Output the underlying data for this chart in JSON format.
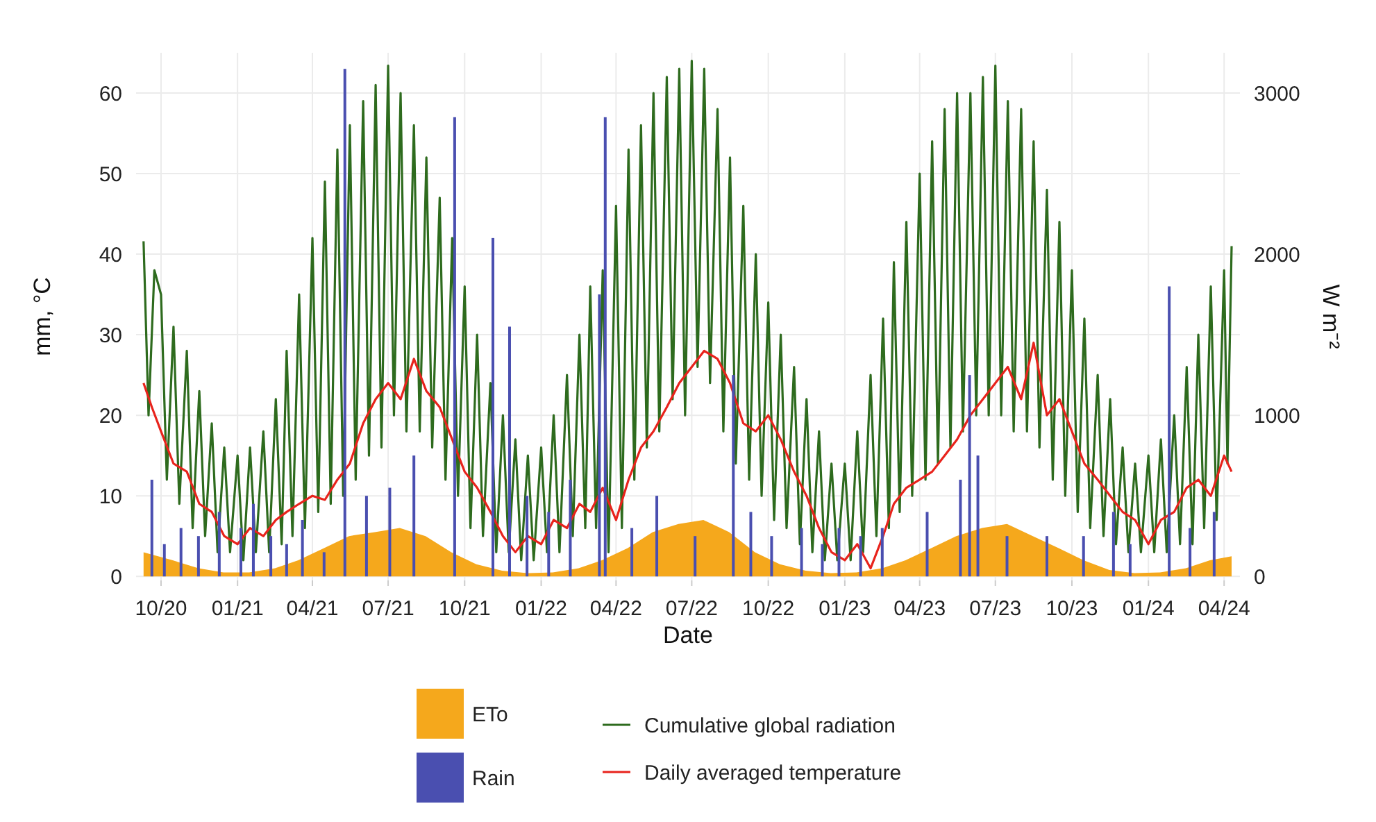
{
  "chart_data": {
    "type": "line",
    "xlabel": "Date",
    "ylabel": "mm, °C",
    "y2label": "W m⁻²",
    "grid": true,
    "legend": "bottom",
    "xlim": [
      "2020-09-01",
      "2024-04-20"
    ],
    "ylim": [
      -0.5,
      65
    ],
    "yticks": [
      0,
      10,
      20,
      30,
      40,
      50,
      60
    ],
    "y2lim": [
      -25,
      3250
    ],
    "y2ticks": [
      0,
      1000,
      2000,
      3000
    ],
    "xticks": [
      {
        "value": "2020-10-01",
        "label": "10/20"
      },
      {
        "value": "2021-01-01",
        "label": "01/21"
      },
      {
        "value": "2021-04-01",
        "label": "04/21"
      },
      {
        "value": "2021-07-01",
        "label": "07/21"
      },
      {
        "value": "2021-10-01",
        "label": "10/21"
      },
      {
        "value": "2022-01-01",
        "label": "01/22"
      },
      {
        "value": "2022-04-01",
        "label": "04/22"
      },
      {
        "value": "2022-07-01",
        "label": "07/22"
      },
      {
        "value": "2022-10-01",
        "label": "10/22"
      },
      {
        "value": "2023-01-01",
        "label": "01/23"
      },
      {
        "value": "2023-04-01",
        "label": "04/23"
      },
      {
        "value": "2023-07-01",
        "label": "07/23"
      },
      {
        "value": "2023-10-01",
        "label": "10/23"
      },
      {
        "value": "2024-01-01",
        "label": "01/24"
      },
      {
        "value": "2024-04-01",
        "label": "04/24"
      }
    ],
    "series": [
      {
        "name": "ETo",
        "type": "area",
        "color": "#f5a81c",
        "x": [
          "2020-09-10",
          "2020-10-15",
          "2020-11-15",
          "2020-12-15",
          "2021-01-15",
          "2021-02-15",
          "2021-03-15",
          "2021-04-15",
          "2021-05-15",
          "2021-06-15",
          "2021-07-15",
          "2021-08-15",
          "2021-09-15",
          "2021-10-15",
          "2021-11-15",
          "2021-12-15",
          "2022-01-15",
          "2022-02-15",
          "2022-03-15",
          "2022-04-15",
          "2022-05-15",
          "2022-06-15",
          "2022-07-15",
          "2022-08-15",
          "2022-09-15",
          "2022-10-15",
          "2022-11-15",
          "2022-12-15",
          "2023-01-15",
          "2023-02-15",
          "2023-03-15",
          "2023-04-15",
          "2023-05-15",
          "2023-06-15",
          "2023-07-15",
          "2023-08-15",
          "2023-09-15",
          "2023-10-15",
          "2023-11-15",
          "2023-12-15",
          "2024-01-15",
          "2024-02-15",
          "2024-03-15",
          "2024-04-10"
        ],
        "values": [
          3,
          2,
          1,
          0.5,
          0.5,
          1,
          2,
          3.5,
          5,
          5.5,
          6,
          5,
          3,
          1.5,
          0.7,
          0.4,
          0.5,
          1,
          2,
          3.5,
          5.5,
          6.5,
          7,
          5.5,
          3,
          1.5,
          0.7,
          0.4,
          0.5,
          1,
          2,
          3.5,
          5,
          6,
          6.5,
          5,
          3.5,
          2,
          0.8,
          0.4,
          0.5,
          1,
          2,
          2.5
        ]
      },
      {
        "name": "Rain",
        "type": "bar",
        "color": "#4a4fb0",
        "x": [
          "2020-09-20",
          "2020-10-05",
          "2020-10-25",
          "2020-11-15",
          "2020-12-10",
          "2021-01-05",
          "2021-01-20",
          "2021-02-10",
          "2021-03-01",
          "2021-03-20",
          "2021-04-15",
          "2021-05-10",
          "2021-06-05",
          "2021-07-03",
          "2021-08-01",
          "2021-09-19",
          "2021-11-04",
          "2021-11-24",
          "2021-12-15",
          "2022-01-10",
          "2022-02-05",
          "2022-03-12",
          "2022-03-19",
          "2022-04-20",
          "2022-05-20",
          "2022-07-05",
          "2022-08-20",
          "2022-09-10",
          "2022-10-05",
          "2022-11-10",
          "2022-12-05",
          "2022-12-25",
          "2023-01-20",
          "2023-02-15",
          "2023-04-10",
          "2023-05-20",
          "2023-05-31",
          "2023-06-10",
          "2023-07-15",
          "2023-09-01",
          "2023-10-15",
          "2023-11-20",
          "2023-12-10",
          "2024-01-26",
          "2024-02-20",
          "2024-03-20"
        ],
        "values": [
          12,
          4,
          6,
          5,
          8,
          6,
          9,
          5,
          4,
          7,
          3,
          63,
          10,
          11,
          15,
          57,
          42,
          31,
          10,
          8,
          12,
          35,
          57,
          6,
          10,
          5,
          25,
          8,
          5,
          6,
          4,
          6,
          5,
          6,
          8,
          12,
          25,
          15,
          5,
          5,
          5,
          8,
          4,
          36,
          6,
          8
        ]
      },
      {
        "name": "Cumulative global radiation",
        "axis": "y2",
        "color": "#2e6b1e",
        "x": [
          "2020-09-10",
          "2020-09-16",
          "2020-09-23",
          "2020-10-01",
          "2020-10-08",
          "2020-10-16",
          "2020-10-23",
          "2020-11-01",
          "2020-11-08",
          "2020-11-16",
          "2020-11-23",
          "2020-12-01",
          "2020-12-08",
          "2020-12-16",
          "2020-12-23",
          "2021-01-01",
          "2021-01-08",
          "2021-01-16",
          "2021-01-23",
          "2021-02-01",
          "2021-02-08",
          "2021-02-16",
          "2021-02-23",
          "2021-03-01",
          "2021-03-08",
          "2021-03-16",
          "2021-03-23",
          "2021-04-01",
          "2021-04-08",
          "2021-04-16",
          "2021-04-23",
          "2021-05-01",
          "2021-05-08",
          "2021-05-16",
          "2021-05-23",
          "2021-06-01",
          "2021-06-08",
          "2021-06-16",
          "2021-06-23",
          "2021-07-01",
          "2021-07-08",
          "2021-07-16",
          "2021-07-23",
          "2021-08-01",
          "2021-08-08",
          "2021-08-16",
          "2021-08-23",
          "2021-09-01",
          "2021-09-08",
          "2021-09-16",
          "2021-09-23",
          "2021-10-01",
          "2021-10-08",
          "2021-10-16",
          "2021-10-23",
          "2021-11-01",
          "2021-11-08",
          "2021-11-16",
          "2021-11-23",
          "2021-12-01",
          "2021-12-08",
          "2021-12-16",
          "2021-12-23",
          "2022-01-01",
          "2022-01-08",
          "2022-01-16",
          "2022-01-23",
          "2022-02-01",
          "2022-02-08",
          "2022-02-16",
          "2022-02-23",
          "2022-03-01",
          "2022-03-08",
          "2022-03-16",
          "2022-03-23",
          "2022-04-01",
          "2022-04-08",
          "2022-04-16",
          "2022-04-23",
          "2022-05-01",
          "2022-05-08",
          "2022-05-16",
          "2022-05-23",
          "2022-06-01",
          "2022-06-08",
          "2022-06-16",
          "2022-06-23",
          "2022-07-01",
          "2022-07-08",
          "2022-07-16",
          "2022-07-23",
          "2022-08-01",
          "2022-08-08",
          "2022-08-16",
          "2022-08-23",
          "2022-09-01",
          "2022-09-08",
          "2022-09-16",
          "2022-09-23",
          "2022-10-01",
          "2022-10-08",
          "2022-10-16",
          "2022-10-23",
          "2022-11-01",
          "2022-11-08",
          "2022-11-16",
          "2022-11-23",
          "2022-12-01",
          "2022-12-08",
          "2022-12-16",
          "2022-12-23",
          "2023-01-01",
          "2023-01-08",
          "2023-01-16",
          "2023-01-23",
          "2023-02-01",
          "2023-02-08",
          "2023-02-16",
          "2023-02-23",
          "2023-03-01",
          "2023-03-08",
          "2023-03-16",
          "2023-03-23",
          "2023-04-01",
          "2023-04-08",
          "2023-04-16",
          "2023-04-23",
          "2023-05-01",
          "2023-05-08",
          "2023-05-16",
          "2023-05-23",
          "2023-06-01",
          "2023-06-08",
          "2023-06-16",
          "2023-06-23",
          "2023-07-01",
          "2023-07-08",
          "2023-07-16",
          "2023-07-23",
          "2023-08-01",
          "2023-08-08",
          "2023-08-16",
          "2023-08-23",
          "2023-09-01",
          "2023-09-08",
          "2023-09-16",
          "2023-09-23",
          "2023-10-01",
          "2023-10-08",
          "2023-10-16",
          "2023-10-23",
          "2023-11-01",
          "2023-11-08",
          "2023-11-16",
          "2023-11-23",
          "2023-12-01",
          "2023-12-08",
          "2023-12-16",
          "2023-12-23",
          "2024-01-01",
          "2024-01-08",
          "2024-01-16",
          "2024-01-23",
          "2024-02-01",
          "2024-02-08",
          "2024-02-16",
          "2024-02-23",
          "2024-03-01",
          "2024-03-08",
          "2024-03-16",
          "2024-03-23",
          "2024-04-01",
          "2024-04-05",
          "2024-04-10"
        ],
        "values": [
          2080,
          1000,
          1900,
          1750,
          600,
          1550,
          450,
          1400,
          300,
          1150,
          250,
          950,
          150,
          800,
          150,
          750,
          100,
          800,
          150,
          900,
          150,
          1100,
          200,
          1400,
          250,
          1750,
          300,
          2100,
          400,
          2450,
          450,
          2650,
          500,
          2800,
          600,
          2950,
          750,
          3050,
          800,
          3170,
          1000,
          3000,
          900,
          2800,
          900,
          2600,
          800,
          2350,
          600,
          2100,
          500,
          1800,
          300,
          1500,
          250,
          1200,
          150,
          1000,
          150,
          850,
          100,
          750,
          100,
          800,
          150,
          1000,
          150,
          1250,
          250,
          1500,
          300,
          1800,
          300,
          1900,
          150,
          2300,
          300,
          2650,
          600,
          2800,
          800,
          3000,
          900,
          3100,
          1100,
          3150,
          1000,
          3200,
          1300,
          3150,
          1200,
          2900,
          900,
          2600,
          700,
          2300,
          600,
          2000,
          500,
          1700,
          350,
          1500,
          300,
          1300,
          200,
          1100,
          150,
          900,
          100,
          700,
          100,
          700,
          100,
          900,
          150,
          1250,
          250,
          1600,
          300,
          1950,
          400,
          2200,
          500,
          2500,
          600,
          2700,
          700,
          2900,
          800,
          3000,
          900,
          3000,
          1000,
          3100,
          1000,
          3170,
          1000,
          2950,
          900,
          2900,
          900,
          2700,
          800,
          2400,
          600,
          2200,
          500,
          1900,
          400,
          1600,
          300,
          1250,
          250,
          1100,
          200,
          800,
          150,
          700,
          150,
          750,
          150,
          850,
          150,
          1000,
          200,
          1300,
          200,
          1500,
          300,
          1800,
          350,
          1900,
          700,
          2050
        ]
      },
      {
        "name": "Daily averaged temperature",
        "color": "#e8231c",
        "x": [
          "2020-09-10",
          "2020-09-20",
          "2020-10-01",
          "2020-10-16",
          "2020-11-01",
          "2020-11-16",
          "2020-12-01",
          "2020-12-16",
          "2021-01-01",
          "2021-01-16",
          "2021-02-01",
          "2021-02-16",
          "2021-03-01",
          "2021-03-16",
          "2021-04-01",
          "2021-04-16",
          "2021-05-01",
          "2021-05-16",
          "2021-06-01",
          "2021-06-16",
          "2021-07-01",
          "2021-07-16",
          "2021-08-01",
          "2021-08-16",
          "2021-09-01",
          "2021-09-16",
          "2021-10-01",
          "2021-10-16",
          "2021-11-01",
          "2021-11-16",
          "2021-12-01",
          "2021-12-16",
          "2022-01-01",
          "2022-01-16",
          "2022-02-01",
          "2022-02-16",
          "2022-03-01",
          "2022-03-16",
          "2022-04-01",
          "2022-04-16",
          "2022-05-01",
          "2022-05-16",
          "2022-06-01",
          "2022-06-16",
          "2022-07-01",
          "2022-07-16",
          "2022-08-01",
          "2022-08-16",
          "2022-09-01",
          "2022-09-16",
          "2022-10-01",
          "2022-10-16",
          "2022-11-01",
          "2022-11-16",
          "2022-12-01",
          "2022-12-16",
          "2023-01-01",
          "2023-01-16",
          "2023-02-01",
          "2023-02-16",
          "2023-03-01",
          "2023-03-16",
          "2023-04-01",
          "2023-04-16",
          "2023-05-01",
          "2023-05-16",
          "2023-06-01",
          "2023-06-16",
          "2023-07-01",
          "2023-07-16",
          "2023-08-01",
          "2023-08-16",
          "2023-09-01",
          "2023-09-16",
          "2023-10-01",
          "2023-10-16",
          "2023-11-01",
          "2023-11-16",
          "2023-12-01",
          "2023-12-16",
          "2024-01-01",
          "2024-01-16",
          "2024-02-01",
          "2024-02-16",
          "2024-03-01",
          "2024-03-16",
          "2024-04-01",
          "2024-04-10"
        ],
        "values": [
          24,
          21,
          18,
          14,
          13,
          9,
          8,
          5,
          4,
          6,
          5,
          7,
          8,
          9,
          10,
          9.5,
          12,
          14,
          19,
          22,
          24,
          22,
          27,
          23,
          21,
          17,
          13,
          11,
          8,
          5,
          3,
          5,
          4,
          7,
          6,
          9,
          8,
          11,
          7,
          12,
          16,
          18,
          21,
          24,
          26,
          28,
          27,
          24,
          19,
          18,
          20,
          17,
          13,
          10,
          6,
          3,
          2,
          4,
          1,
          5,
          9,
          11,
          12,
          13,
          15,
          17,
          20,
          22,
          24,
          26,
          22,
          29,
          20,
          22,
          18,
          14,
          12,
          10,
          8,
          7,
          4,
          7,
          8,
          11,
          12,
          10,
          15,
          13
        ]
      }
    ]
  }
}
